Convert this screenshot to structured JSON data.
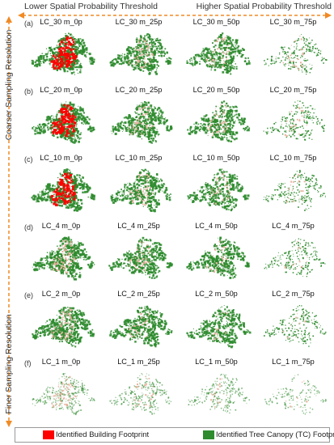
{
  "header": {
    "left_label": "Lower Spatial Probability Threshold",
    "right_label": "Higher Spatial Probability Threshold"
  },
  "side": {
    "top_label": "Coarser Sampling Resolution",
    "bottom_label": "Finer Sampling Resolution"
  },
  "rows": [
    {
      "tag": "(a)",
      "titles": [
        "LC_30 m_0p",
        "LC_30 m_25p",
        "LC_30 m_50p",
        "LC_30 m_75p"
      ]
    },
    {
      "tag": "(b)",
      "titles": [
        "LC_20 m_0p",
        "LC_20 m_25p",
        "LC_20 m_50p",
        "LC_20 m_75p"
      ]
    },
    {
      "tag": "(c)",
      "titles": [
        "LC_10 m_0p",
        "LC_10 m_25p",
        "LC_10 m_50p",
        "LC_10 m_75p"
      ]
    },
    {
      "tag": "(d)",
      "titles": [
        "LC_4 m_0p",
        "LC_4 m_25p",
        "LC_4 m_50p",
        "LC_4 m_75p"
      ]
    },
    {
      "tag": "(e)",
      "titles": [
        "LC_2 m_0p",
        "LC_2 m_25p",
        "LC_2 m_50p",
        "LC_2 m_75p"
      ]
    },
    {
      "tag": "(f)",
      "titles": [
        "LC_1 m_0p",
        "LC_1 m_25p",
        "LC_1 m_50p",
        "LC_1 m_75p"
      ]
    }
  ],
  "legend": {
    "building_label": "Identified Building Footprint",
    "building_color": "#ff0000",
    "tree_label": "Identified Tree Canopy (TC) Footprint",
    "tree_color": "#2e8b2e"
  },
  "colors": {
    "arrow": "#f08a24",
    "building_faint": "#e8b4a0"
  }
}
